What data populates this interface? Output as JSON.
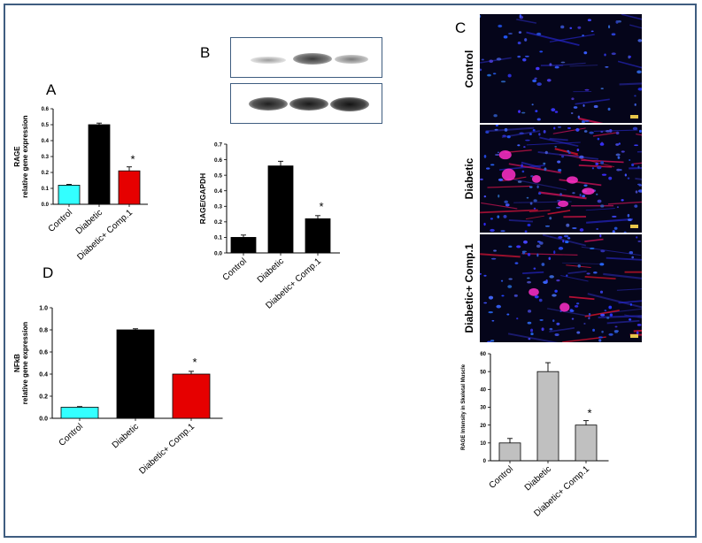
{
  "panels": {
    "A": {
      "letter": "A"
    },
    "B": {
      "letter": "B"
    },
    "C": {
      "letter": "C",
      "image_rows": [
        "Control",
        "Diabetic",
        "Diabetic+ Comp.1"
      ]
    },
    "D": {
      "letter": "D"
    }
  },
  "chart_data": [
    {
      "id": "A",
      "type": "bar",
      "categories": [
        "Control",
        "Diabetic",
        "Diabetic+ Comp.1"
      ],
      "values": [
        0.12,
        0.5,
        0.21
      ],
      "errors": [
        0.005,
        0.01,
        0.025
      ],
      "colors": [
        "#33ffff",
        "#000000",
        "#e60000"
      ],
      "annotations": [
        "",
        "",
        "*"
      ],
      "ylabel_line1": "RAGE",
      "ylabel_line2": "relative gene expression",
      "xlabel": "",
      "ylim": [
        0,
        0.6
      ],
      "yticks": [
        "0.0",
        "0.1",
        "0.2",
        "0.3",
        "0.4",
        "0.5",
        "0.6"
      ],
      "grid": false
    },
    {
      "id": "B",
      "type": "bar",
      "categories": [
        "Control",
        "Diabetic",
        "Diabetic+ Comp.1"
      ],
      "values": [
        0.1,
        0.56,
        0.22
      ],
      "errors": [
        0.015,
        0.03,
        0.02
      ],
      "colors": [
        "#000000",
        "#000000",
        "#000000"
      ],
      "annotations": [
        "",
        "",
        "*"
      ],
      "ylabel_line1": "RAGE/GAPDH",
      "ylabel_line2": "",
      "xlabel": "",
      "ylim": [
        0,
        0.7
      ],
      "yticks": [
        "0.0",
        "0.1",
        "0.2",
        "0.3",
        "0.4",
        "0.5",
        "0.6",
        "0.7"
      ],
      "grid": false
    },
    {
      "id": "C",
      "type": "bar",
      "categories": [
        "Control",
        "Diabetic",
        "Diabetic+ Comp.1"
      ],
      "values": [
        10,
        50,
        20
      ],
      "errors": [
        2.5,
        5,
        2.5
      ],
      "colors": [
        "#c0c0c0",
        "#c0c0c0",
        "#c0c0c0"
      ],
      "annotations": [
        "",
        "",
        "*"
      ],
      "ylabel_line1": "RAGE Intensity in Skeletal Muscle",
      "ylabel_line2": "",
      "xlabel": "",
      "ylim": [
        0,
        60
      ],
      "yticks": [
        "0",
        "10",
        "20",
        "30",
        "40",
        "50",
        "60"
      ],
      "grid": false
    },
    {
      "id": "D",
      "type": "bar",
      "categories": [
        "Control",
        "Diabetic",
        "Diabetic+ Comp.1"
      ],
      "values": [
        0.1,
        0.8,
        0.4
      ],
      "errors": [
        0.006,
        0.01,
        0.025
      ],
      "colors": [
        "#33ffff",
        "#000000",
        "#e60000"
      ],
      "annotations": [
        "",
        "",
        "*"
      ],
      "ylabel_line1": "NFkB",
      "ylabel_line2": "relative gene expression",
      "xlabel": "",
      "ylim": [
        0,
        1.0
      ],
      "yticks": [
        "0.0",
        "0.2",
        "0.4",
        "0.6",
        "0.8",
        "1.0"
      ],
      "grid": false
    }
  ]
}
